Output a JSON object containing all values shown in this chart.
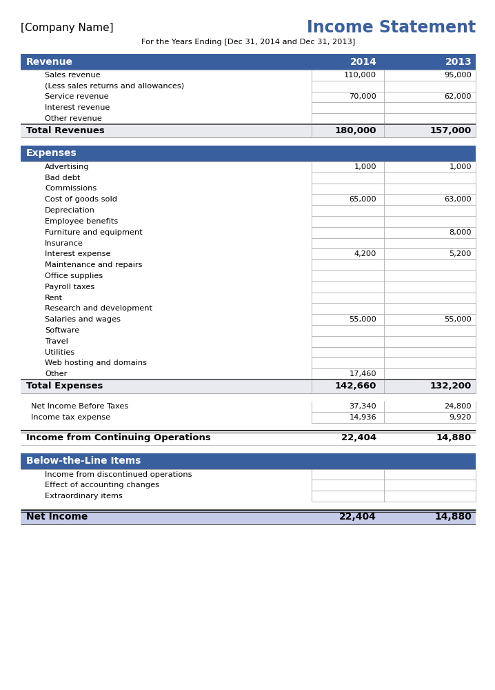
{
  "title": "Income Statement",
  "company": "[Company Name]",
  "subtitle": "For the Years Ending [Dec 31, 2014 and Dec 31, 2013]",
  "header_bg": "#3a5f9f",
  "header_text": "#ffffff",
  "total_bg": "#e8eaf0",
  "net_income_bg": "#c5cce8",
  "sections": [
    {
      "type": "header",
      "label": "Revenue",
      "val2014": "2014",
      "val2013": "2013"
    },
    {
      "type": "item",
      "label": "Sales revenue",
      "val2014": "110,000",
      "val2013": "95,000"
    },
    {
      "type": "item",
      "label": "(Less sales returns and allowances)",
      "val2014": "",
      "val2013": ""
    },
    {
      "type": "item",
      "label": "Service revenue",
      "val2014": "70,000",
      "val2013": "62,000"
    },
    {
      "type": "item",
      "label": "Interest revenue",
      "val2014": "",
      "val2013": ""
    },
    {
      "type": "item",
      "label": "Other revenue",
      "val2014": "",
      "val2013": ""
    },
    {
      "type": "total",
      "label": "Total Revenues",
      "val2014": "180,000",
      "val2013": "157,000"
    },
    {
      "type": "spacer"
    },
    {
      "type": "header",
      "label": "Expenses",
      "val2014": "",
      "val2013": ""
    },
    {
      "type": "item",
      "label": "Advertising",
      "val2014": "1,000",
      "val2013": "1,000"
    },
    {
      "type": "item",
      "label": "Bad debt",
      "val2014": "",
      "val2013": ""
    },
    {
      "type": "item",
      "label": "Commissions",
      "val2014": "",
      "val2013": ""
    },
    {
      "type": "item",
      "label": "Cost of goods sold",
      "val2014": "65,000",
      "val2013": "63,000"
    },
    {
      "type": "item",
      "label": "Depreciation",
      "val2014": "",
      "val2013": ""
    },
    {
      "type": "item",
      "label": "Employee benefits",
      "val2014": "",
      "val2013": ""
    },
    {
      "type": "item",
      "label": "Furniture and equipment",
      "val2014": "",
      "val2013": "8,000"
    },
    {
      "type": "item",
      "label": "Insurance",
      "val2014": "",
      "val2013": ""
    },
    {
      "type": "item",
      "label": "Interest expense",
      "val2014": "4,200",
      "val2013": "5,200"
    },
    {
      "type": "item",
      "label": "Maintenance and repairs",
      "val2014": "",
      "val2013": ""
    },
    {
      "type": "item",
      "label": "Office supplies",
      "val2014": "",
      "val2013": ""
    },
    {
      "type": "item",
      "label": "Payroll taxes",
      "val2014": "",
      "val2013": ""
    },
    {
      "type": "item",
      "label": "Rent",
      "val2014": "",
      "val2013": ""
    },
    {
      "type": "item",
      "label": "Research and development",
      "val2014": "",
      "val2013": ""
    },
    {
      "type": "item",
      "label": "Salaries and wages",
      "val2014": "55,000",
      "val2013": "55,000"
    },
    {
      "type": "item",
      "label": "Software",
      "val2014": "",
      "val2013": ""
    },
    {
      "type": "item",
      "label": "Travel",
      "val2014": "",
      "val2013": ""
    },
    {
      "type": "item",
      "label": "Utilities",
      "val2014": "",
      "val2013": ""
    },
    {
      "type": "item",
      "label": "Web hosting and domains",
      "val2014": "",
      "val2013": ""
    },
    {
      "type": "item",
      "label": "Other",
      "val2014": "17,460",
      "val2013": ""
    },
    {
      "type": "total",
      "label": "Total Expenses",
      "val2014": "142,660",
      "val2013": "132,200"
    },
    {
      "type": "spacer"
    },
    {
      "type": "item_plain",
      "label": "Net Income Before Taxes",
      "val2014": "37,340",
      "val2013": "24,800"
    },
    {
      "type": "item_plain",
      "label": "Income tax expense",
      "val2014": "14,936",
      "val2013": "9,920"
    },
    {
      "type": "spacer"
    },
    {
      "type": "continuing",
      "label": "Income from Continuing Operations",
      "val2014": "22,404",
      "val2013": "14,880"
    },
    {
      "type": "spacer"
    },
    {
      "type": "header",
      "label": "Below-the-Line Items",
      "val2014": "",
      "val2013": ""
    },
    {
      "type": "item",
      "label": "Income from discontinued operations",
      "val2014": "",
      "val2013": ""
    },
    {
      "type": "item",
      "label": "Effect of accounting changes",
      "val2014": "",
      "val2013": ""
    },
    {
      "type": "item",
      "label": "Extraordinary items",
      "val2014": "",
      "val2013": ""
    },
    {
      "type": "spacer"
    },
    {
      "type": "net_income",
      "label": "Net Income",
      "val2014": "22,404",
      "val2013": "14,880"
    }
  ]
}
